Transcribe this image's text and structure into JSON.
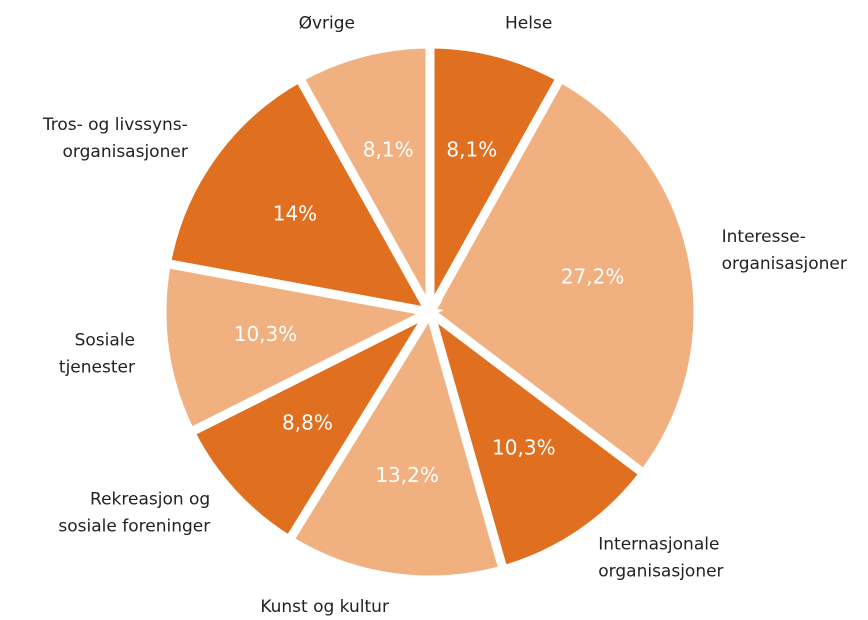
{
  "chart_data": {
    "type": "pie",
    "categories": [
      [
        "Helse"
      ],
      [
        "Interesse-",
        "organisasjoner"
      ],
      [
        "Internasjonale",
        "organisasjoner"
      ],
      [
        "Kunst og kultur"
      ],
      [
        "Rekreasjon og",
        "sosiale foreninger"
      ],
      [
        "Sosiale",
        "tjenester"
      ],
      [
        "Tros- og livssyns-",
        "organisasjoner"
      ],
      [
        "Øvrige"
      ]
    ],
    "values": [
      8.1,
      27.2,
      10.3,
      13.2,
      8.8,
      10.3,
      14,
      8.1
    ],
    "value_labels": [
      "8,1%",
      "27,2%",
      "10,3%",
      "13,2%",
      "8,8%",
      "10,3%",
      "14%",
      "8,1%"
    ],
    "colors": [
      "#e07020",
      "#f0b080",
      "#e07020",
      "#f0b080",
      "#e07020",
      "#f0b080",
      "#e07020",
      "#f0b080"
    ]
  }
}
